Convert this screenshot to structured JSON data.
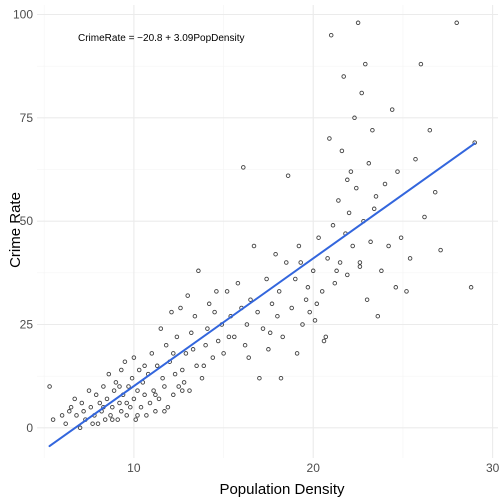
{
  "chart_data": {
    "type": "scatter",
    "title": "",
    "xlabel": "Population Density",
    "ylabel": "Crime Rate",
    "xlim": [
      4.6,
      30.3
    ],
    "ylim": [
      -7.3,
      102.3
    ],
    "xticks": [
      10,
      20,
      30
    ],
    "yticks": [
      0,
      25,
      50,
      75,
      100
    ],
    "grid": true,
    "annotation": "CrimeRate = −20.8 + 3.09PopDensity",
    "regression": {
      "intercept": -20.8,
      "slope": 3.09,
      "x_range": [
        5.3,
        29.0
      ],
      "color": "#3366dd"
    },
    "points": [
      [
        5.3,
        10
      ],
      [
        5.5,
        2
      ],
      [
        6.0,
        3
      ],
      [
        6.2,
        1
      ],
      [
        6.5,
        5
      ],
      [
        6.7,
        7
      ],
      [
        6.8,
        3
      ],
      [
        7.0,
        0
      ],
      [
        7.2,
        4
      ],
      [
        7.3,
        2
      ],
      [
        7.5,
        9
      ],
      [
        7.6,
        5
      ],
      [
        7.8,
        3
      ],
      [
        7.9,
        8
      ],
      [
        8.0,
        1
      ],
      [
        8.1,
        6
      ],
      [
        8.2,
        4
      ],
      [
        8.3,
        10
      ],
      [
        8.4,
        2
      ],
      [
        8.5,
        7
      ],
      [
        8.6,
        13
      ],
      [
        8.7,
        3
      ],
      [
        8.8,
        5
      ],
      [
        8.9,
        9
      ],
      [
        9.0,
        11
      ],
      [
        9.1,
        2
      ],
      [
        9.2,
        6
      ],
      [
        9.3,
        4
      ],
      [
        9.3,
        14
      ],
      [
        9.4,
        8
      ],
      [
        9.5,
        16
      ],
      [
        9.6,
        3
      ],
      [
        9.7,
        10
      ],
      [
        9.8,
        5
      ],
      [
        9.9,
        12
      ],
      [
        10.0,
        7
      ],
      [
        10.0,
        17
      ],
      [
        10.1,
        2
      ],
      [
        10.2,
        9
      ],
      [
        10.3,
        14
      ],
      [
        10.4,
        5
      ],
      [
        10.5,
        11
      ],
      [
        10.6,
        8
      ],
      [
        10.7,
        3
      ],
      [
        10.8,
        13
      ],
      [
        10.9,
        6
      ],
      [
        11.0,
        18
      ],
      [
        11.1,
        9
      ],
      [
        11.2,
        4
      ],
      [
        11.3,
        15
      ],
      [
        11.4,
        7
      ],
      [
        11.5,
        24
      ],
      [
        11.6,
        12
      ],
      [
        11.7,
        10
      ],
      [
        11.8,
        20
      ],
      [
        11.9,
        5
      ],
      [
        12.0,
        16
      ],
      [
        12.1,
        28
      ],
      [
        12.2,
        8
      ],
      [
        12.3,
        13
      ],
      [
        12.4,
        22
      ],
      [
        12.5,
        10
      ],
      [
        12.6,
        29
      ],
      [
        12.7,
        14
      ],
      [
        12.8,
        11
      ],
      [
        12.9,
        18
      ],
      [
        13.0,
        32
      ],
      [
        13.1,
        9
      ],
      [
        13.2,
        23
      ],
      [
        13.4,
        27
      ],
      [
        13.5,
        15
      ],
      [
        13.6,
        38
      ],
      [
        13.8,
        12
      ],
      [
        14.0,
        20
      ],
      [
        14.1,
        24
      ],
      [
        14.2,
        30
      ],
      [
        14.4,
        17
      ],
      [
        14.5,
        28
      ],
      [
        14.7,
        21
      ],
      [
        14.9,
        25
      ],
      [
        15.0,
        18
      ],
      [
        15.2,
        33
      ],
      [
        15.4,
        27
      ],
      [
        15.6,
        22
      ],
      [
        15.8,
        35
      ],
      [
        16.0,
        29
      ],
      [
        16.1,
        63
      ],
      [
        16.2,
        20
      ],
      [
        16.3,
        25
      ],
      [
        16.5,
        31
      ],
      [
        16.7,
        44
      ],
      [
        16.9,
        28
      ],
      [
        17.0,
        12
      ],
      [
        17.2,
        24
      ],
      [
        17.4,
        36
      ],
      [
        17.5,
        19
      ],
      [
        17.7,
        30
      ],
      [
        17.9,
        42
      ],
      [
        18.0,
        27
      ],
      [
        18.1,
        33
      ],
      [
        18.3,
        22
      ],
      [
        18.5,
        40
      ],
      [
        18.6,
        61
      ],
      [
        18.8,
        29
      ],
      [
        19.0,
        36
      ],
      [
        19.2,
        44
      ],
      [
        19.4,
        25
      ],
      [
        19.6,
        31
      ],
      [
        19.7,
        34
      ],
      [
        19.8,
        28
      ],
      [
        20.0,
        38
      ],
      [
        20.1,
        26
      ],
      [
        20.3,
        46
      ],
      [
        20.5,
        33
      ],
      [
        20.6,
        21
      ],
      [
        20.8,
        41
      ],
      [
        20.9,
        70
      ],
      [
        21.0,
        95
      ],
      [
        21.1,
        49
      ],
      [
        21.2,
        35
      ],
      [
        21.4,
        55
      ],
      [
        21.5,
        40
      ],
      [
        21.6,
        67
      ],
      [
        21.7,
        85
      ],
      [
        21.8,
        47
      ],
      [
        21.9,
        37
      ],
      [
        22.0,
        52
      ],
      [
        22.1,
        62
      ],
      [
        22.2,
        44
      ],
      [
        22.3,
        75
      ],
      [
        22.4,
        58
      ],
      [
        22.5,
        98
      ],
      [
        22.6,
        39
      ],
      [
        22.7,
        81
      ],
      [
        22.8,
        50
      ],
      [
        22.9,
        88
      ],
      [
        23.0,
        31
      ],
      [
        23.1,
        64
      ],
      [
        23.2,
        45
      ],
      [
        23.3,
        72
      ],
      [
        23.4,
        53
      ],
      [
        23.6,
        27
      ],
      [
        23.8,
        38
      ],
      [
        24.0,
        59
      ],
      [
        24.2,
        44
      ],
      [
        24.4,
        77
      ],
      [
        24.7,
        62
      ],
      [
        24.9,
        46
      ],
      [
        25.2,
        33
      ],
      [
        25.7,
        65
      ],
      [
        26.0,
        88
      ],
      [
        26.2,
        51
      ],
      [
        26.5,
        72
      ],
      [
        26.8,
        57
      ],
      [
        27.1,
        43
      ],
      [
        28.0,
        98
      ],
      [
        28.8,
        34
      ],
      [
        29.0,
        69
      ],
      [
        6.4,
        4
      ],
      [
        7.1,
        6
      ],
      [
        7.7,
        1
      ],
      [
        8.3,
        5
      ],
      [
        8.8,
        2
      ],
      [
        9.2,
        10
      ],
      [
        9.6,
        6
      ],
      [
        10.2,
        3
      ],
      [
        10.6,
        15
      ],
      [
        11.2,
        8
      ],
      [
        11.7,
        4
      ],
      [
        12.2,
        18
      ],
      [
        12.7,
        9
      ],
      [
        13.3,
        19
      ],
      [
        13.9,
        15
      ],
      [
        14.6,
        33
      ],
      [
        15.3,
        22
      ],
      [
        16.4,
        17
      ],
      [
        17.6,
        23
      ],
      [
        19.3,
        40
      ],
      [
        20.2,
        30
      ],
      [
        21.3,
        38
      ],
      [
        21.9,
        60
      ],
      [
        22.6,
        40
      ],
      [
        23.5,
        56
      ],
      [
        24.6,
        34
      ],
      [
        25.4,
        41
      ],
      [
        20.7,
        22
      ],
      [
        19.1,
        18
      ],
      [
        18.2,
        12
      ]
    ]
  }
}
